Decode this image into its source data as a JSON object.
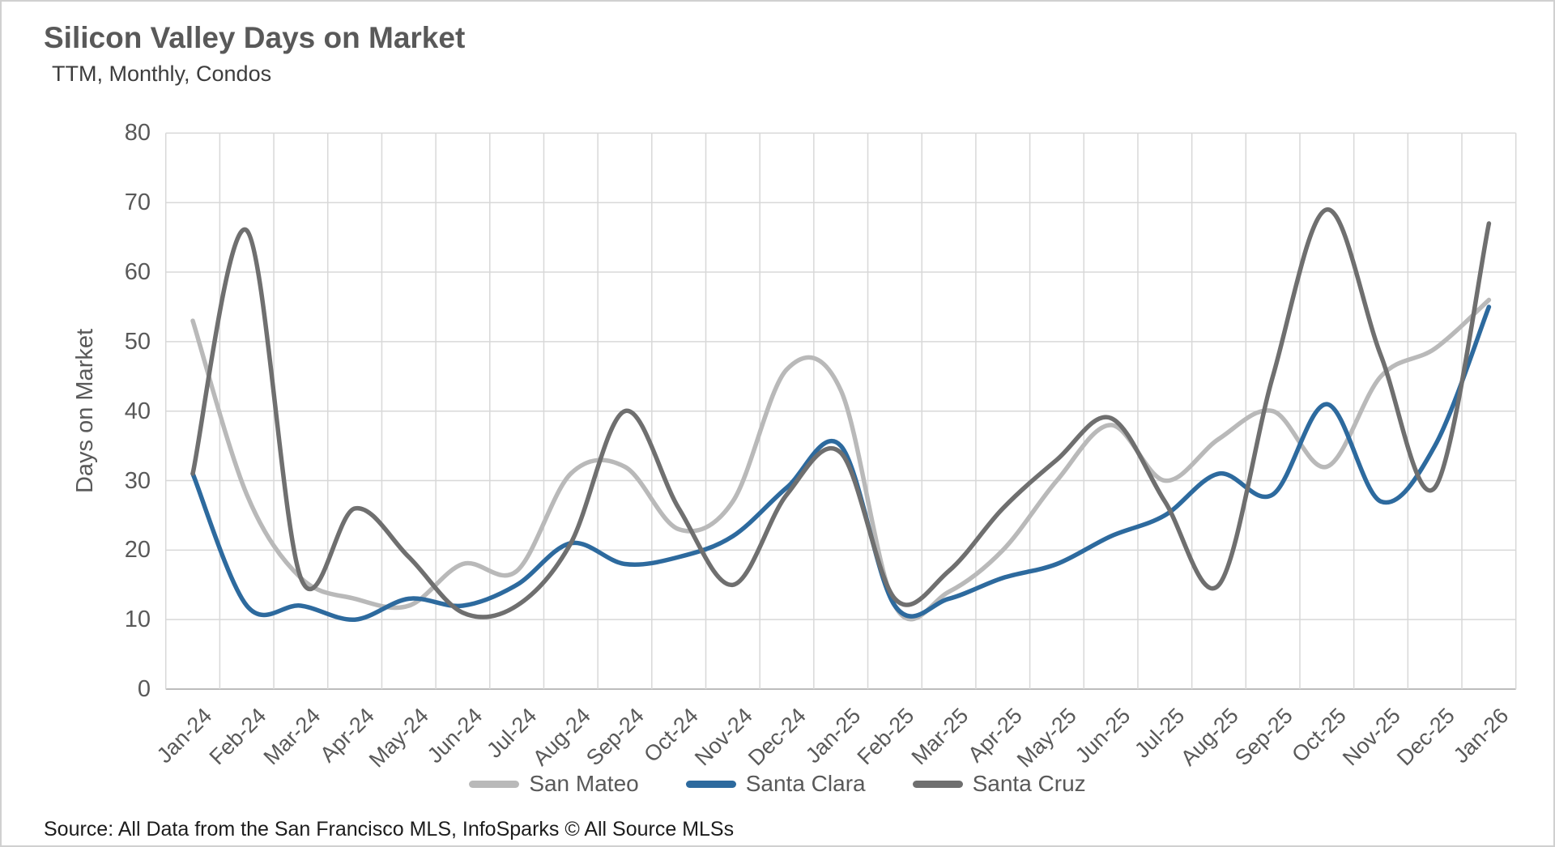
{
  "chart_data": {
    "type": "line",
    "title": "Silicon Valley Days on Market",
    "subtitle": "TTM, Monthly, Condos",
    "ylabel": "Days on Market",
    "xlabel": "",
    "ylim": [
      0,
      80
    ],
    "ytick_step": 10,
    "grid": true,
    "legend_position": "bottom",
    "categories": [
      "Jan-24",
      "Feb-24",
      "Mar-24",
      "Apr-24",
      "May-24",
      "Jun-24",
      "Jul-24",
      "Aug-24",
      "Sep-24",
      "Oct-24",
      "Nov-24",
      "Dec-24",
      "Jan-25",
      "Feb-25",
      "Mar-25",
      "Apr-25",
      "May-25",
      "Jun-25",
      "Jul-25",
      "Aug-25",
      "Sep-25",
      "Oct-25",
      "Nov-25",
      "Dec-25",
      "Jan-26"
    ],
    "series": [
      {
        "name": "San Mateo",
        "color": "#b9b9b9",
        "values": [
          53,
          28,
          16,
          13,
          12,
          18,
          17,
          31,
          32,
          23,
          27,
          46,
          43,
          12,
          14,
          20,
          30,
          38,
          30,
          36,
          40,
          32,
          45,
          49,
          56
        ]
      },
      {
        "name": "Santa Clara",
        "color": "#2d6a9e",
        "values": [
          31,
          12,
          12,
          10,
          13,
          12,
          15,
          21,
          18,
          19,
          22,
          29,
          35,
          12,
          13,
          16,
          18,
          22,
          25,
          31,
          28,
          41,
          27,
          35,
          55
        ]
      },
      {
        "name": "Santa Cruz",
        "color": "#6f6f6f",
        "values": [
          31,
          66,
          16,
          26,
          19,
          11,
          12,
          21,
          40,
          26,
          15,
          28,
          34,
          13,
          17,
          26,
          33,
          39,
          27,
          15,
          45,
          69,
          48,
          29,
          67
        ]
      }
    ]
  },
  "colors": {
    "gridline": "#d8d8d8",
    "axis_line": "#bdbdbd",
    "tick_text": "#595959"
  },
  "source": "Source: All Data from the San Francisco MLS, InfoSparks © All Source MLSs"
}
